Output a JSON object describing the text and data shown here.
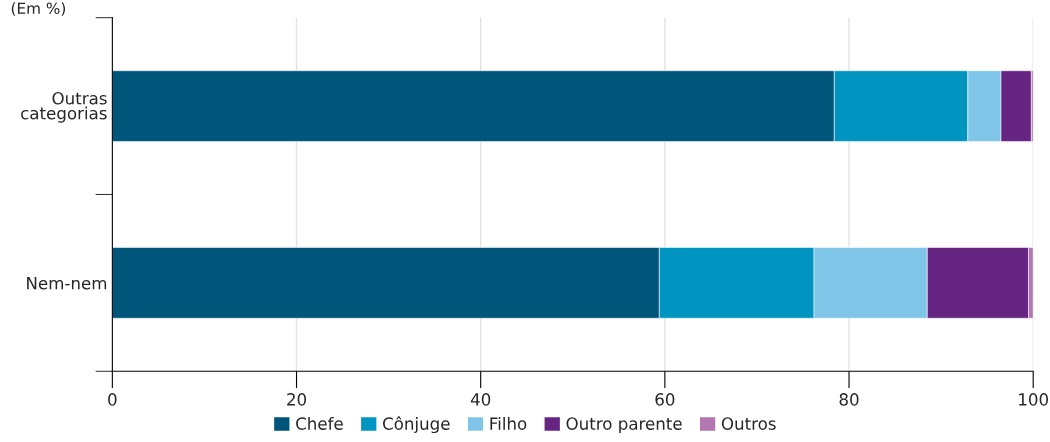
{
  "chart_data": {
    "type": "bar",
    "orientation": "horizontal",
    "stacked": true,
    "categories": [
      "Outras\ncategorias",
      "Nem-nem"
    ],
    "series": [
      {
        "name": "Chefe",
        "color": "#00557a",
        "values": [
          78.4,
          59.4
        ]
      },
      {
        "name": "Cônjuge",
        "color": "#0095c1",
        "values": [
          14.5,
          16.8
        ]
      },
      {
        "name": "Filho",
        "color": "#7fc5e8",
        "values": [
          3.6,
          12.3
        ]
      },
      {
        "name": "Outro parente",
        "color": "#662483",
        "values": [
          3.3,
          11.0
        ]
      },
      {
        "name": "Outros",
        "color": "#b276b2",
        "values": [
          0.2,
          0.5
        ]
      }
    ],
    "xlim": [
      0,
      100
    ],
    "xticks": [
      0,
      20,
      40,
      60,
      80,
      100
    ],
    "grid": "x",
    "legend": "bottom",
    "annotations": [
      "(Em %)"
    ]
  }
}
